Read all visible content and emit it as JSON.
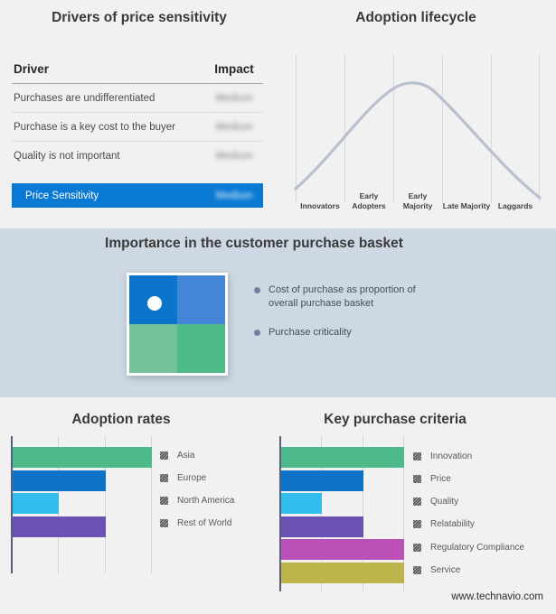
{
  "page": {
    "website_label": "www.technavio.com"
  },
  "colors": {
    "page_bg": "#f1f1f2",
    "band_bg": "#cdd8e2",
    "accent_blue": "#0a79d3",
    "curve": "#b9c0ce",
    "quadrant_dot": "#ffffff"
  },
  "drivers_panel": {
    "title": "Drivers of price sensitivity",
    "table": {
      "col_driver": "Driver",
      "col_impact": "Impact",
      "impact_values_blurred": true,
      "rows": [
        {
          "driver": "Purchases are undifferentiated",
          "impact": "Medium"
        },
        {
          "driver": "Purchase is a key cost to the buyer",
          "impact": "Medium"
        },
        {
          "driver": "Quality is not important",
          "impact": "Medium"
        }
      ],
      "summary": {
        "label": "Price Sensitivity",
        "impact": "Medium"
      }
    }
  },
  "basket_panel": {
    "title": "Importance in the customer purchase basket",
    "bullets": [
      "Cost of purchase as proportion of overall purchase basket",
      "Purchase criticality"
    ],
    "quadrant_colors": {
      "top_left": "#0b74cb",
      "top_right": "#4385d7",
      "bottom_left": "#74c19b",
      "bottom_right": "#4fbc87"
    }
  },
  "chart_data": [
    {
      "type": "line",
      "title": "Adoption lifecycle",
      "categories": [
        "Innovators",
        "Early Adopters",
        "Early Majority",
        "Late Majority",
        "Laggards"
      ],
      "description": "Bell-shaped adoption curve rising from Innovators, peaking around Early Majority, falling through Laggards",
      "curve_color": "#b9c0ce",
      "grid": true,
      "legend_position": "none"
    },
    {
      "type": "bar",
      "title": "Adoption rates",
      "orientation": "horizontal",
      "categories": [
        "Asia",
        "Europe",
        "North America",
        "Rest of World"
      ],
      "values": [
        3,
        2,
        1,
        2
      ],
      "xlim": [
        0,
        3
      ],
      "colors": [
        "#4eba8c",
        "#0c73c6",
        "#31bcee",
        "#6a51b4"
      ],
      "grid": true,
      "legend_position": "right"
    },
    {
      "type": "bar",
      "title": "Key purchase criteria",
      "orientation": "horizontal",
      "categories": [
        "Innovation",
        "Price",
        "Quality",
        "Relatability",
        "Regulatory Compliance",
        "Service"
      ],
      "values": [
        3,
        2,
        1,
        2,
        3,
        3
      ],
      "xlim": [
        0,
        3
      ],
      "colors": [
        "#4eba8c",
        "#0c73c6",
        "#31bcee",
        "#6a51b4",
        "#bb50b8",
        "#bdb44c"
      ],
      "grid": true,
      "legend_position": "right"
    }
  ]
}
